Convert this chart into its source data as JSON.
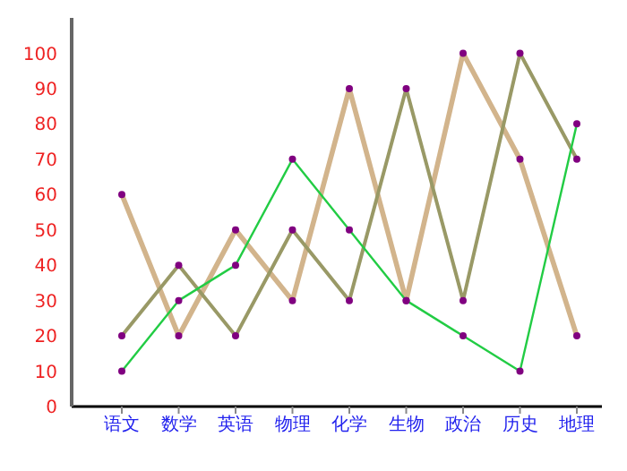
{
  "chart_data": {
    "type": "line",
    "categories": [
      "语文",
      "数学",
      "英语",
      "物理",
      "化学",
      "生物",
      "政治",
      "历史",
      "地理"
    ],
    "series": [
      {
        "color": "#d2b48c",
        "values": [
          60,
          20,
          50,
          30,
          90,
          30,
          100,
          70,
          20
        ]
      },
      {
        "color": "#999966",
        "values": [
          20,
          40,
          20,
          50,
          30,
          90,
          30,
          100,
          70
        ]
      },
      {
        "color": "#22cc44",
        "values": [
          10,
          30,
          40,
          70,
          50,
          30,
          20,
          10,
          80
        ]
      }
    ],
    "ylim": [
      0,
      110
    ],
    "yticks": [
      0,
      10,
      20,
      30,
      40,
      50,
      60,
      70,
      80,
      90,
      100
    ],
    "grid": false,
    "legend": false,
    "marker": "circle",
    "line_style": "solid"
  }
}
